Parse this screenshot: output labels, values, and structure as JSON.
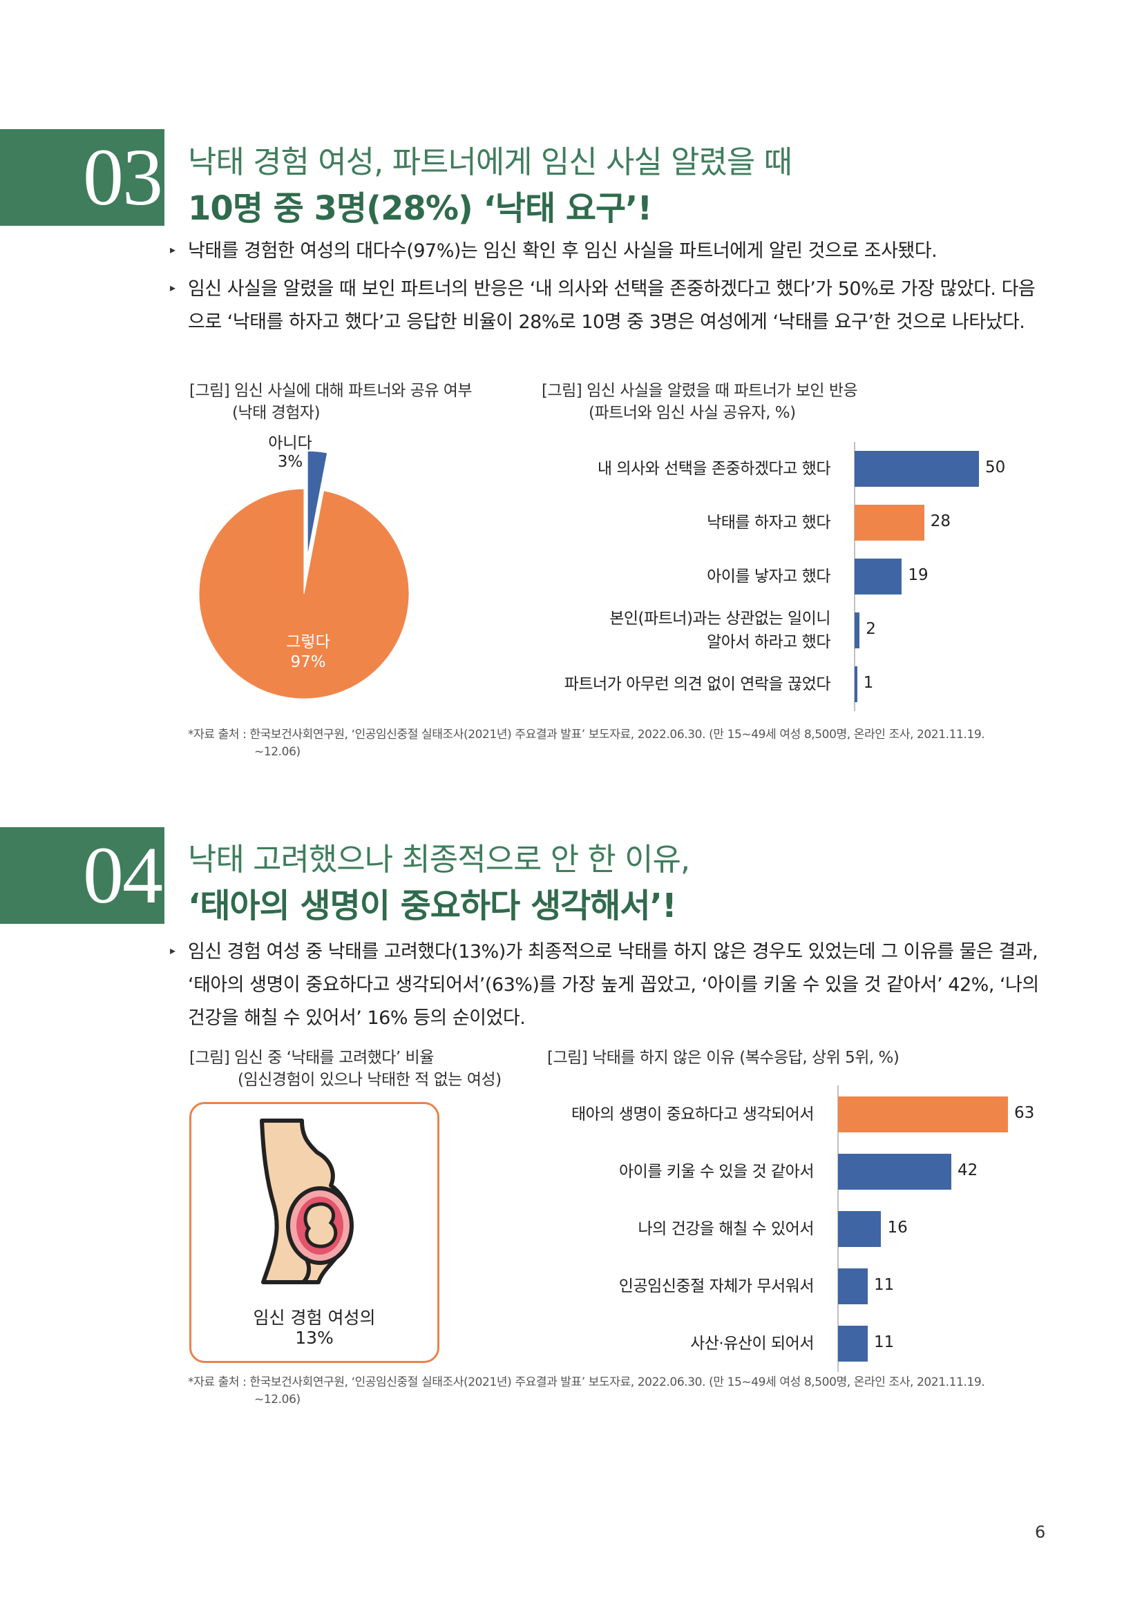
{
  "section03": {
    "number": "03",
    "title_line1": "낙태 경험 여성, 파트너에게 임신 사실 알렸을 때",
    "title_line2": "10명 중 3명(28%) ‘낙태 요구’!",
    "bullet1": "낙태를 경험한 여성의 대다수(97%)는 임신 확인 후 임신 사실을 파트너에게 알린 것으로 조사됐다.",
    "bullet2": "임신 사실을 알렸을 때 보인 파트너의 반응은 ‘내 의사와 선택을 존중하겠다고 했다’가 50%로 가장 많았다. 다음으로 ‘낙태를 하자고 했다’고 응답한 비율이 28%로 10명 중 3명은 여성에게 ‘낙태를 요구’한 것으로 나타났다.",
    "fig1_caption_line1": "[그림] 임신 사실에 대해 파트너와 공유 여부",
    "fig1_caption_line2": "(낙태 경험자)",
    "fig2_caption_line1": "[그림] 임신 사실을 알렸을 때 파트너가 보인 반응",
    "fig2_caption_line2": "(파트너와 임신 사실 공유자, %)",
    "source_line1": "*자료 출처 : 한국보건사회연구원, ‘인공임신중절 실태조사(2021년) 주요결과 발표’ 보도자료, 2022.06.30. (만 15~49세 여성 8,500명, 온라인 조사, 2021.11.19.",
    "source_line2": "~12.06)"
  },
  "section04": {
    "number": "04",
    "title_line1": "낙태 고려했으나 최종적으로 안 한 이유,",
    "title_line2": "‘태아의 생명이 중요하다 생각해서’!",
    "bullet1": "임신 경험 여성 중 낙태를 고려했다(13%)가 최종적으로 낙태를 하지 않은 경우도 있었는데 그 이유를 물은 결과, ‘태아의 생명이 중요하다고 생각되어서’(63%)를 가장 높게 꼽았고, ‘아이를 키울 수 있을 것 같아서’ 42%, ‘나의 건강을 해칠 수 있어서’ 16% 등의 순이었다.",
    "fig1_caption_line1": "[그림] 임신 중 ‘낙태를 고려했다’ 비율",
    "fig1_caption_line2": "(임신경험이 있으나 낙태한 적 없는 여성)",
    "fig2_caption": "[그림] 낙태를 하지 않은 이유 (복수응답, 상위 5위, %)",
    "illus_text_line1": "임신 경험 여성의",
    "illus_text_line2": "13%",
    "source_line1": "*자료 출처 : 한국보건사회연구원, ‘인공임신중절 실태조사(2021년) 주요결과 발표’ 보도자료, 2022.06.30. (만 15~49세 여성 8,500명, 온라인 조사, 2021.11.19.",
    "source_line2": "~12.06)"
  },
  "page_number": "6",
  "chart_data": [
    {
      "type": "pie",
      "slices": [
        {
          "label": "아니다",
          "value": 3,
          "display": "3%",
          "color": "#3f65a5"
        },
        {
          "label": "그렇다",
          "value": 97,
          "display": "97%",
          "color": "#f0854a"
        }
      ]
    },
    {
      "type": "bar",
      "orientation": "horizontal",
      "categories": [
        "내 의사와 선택을 존중하겠다고 했다",
        "낙태를 하자고 했다",
        "아이를 낳자고 했다",
        "본인(파트너)과는 상관없는 일이니 알아서 하라고 했다",
        "파트너가 아무런 의견 없이 연락을 끊었다"
      ],
      "category_lines": [
        [
          "내 의사와 선택을 존중하겠다고 했다"
        ],
        [
          "낙태를 하자고 했다"
        ],
        [
          "아이를 낳자고 했다"
        ],
        [
          "본인(파트너)과는 상관없는 일이니",
          "알아서 하라고 했다"
        ],
        [
          "파트너가 아무런 의견 없이 연락을 끊었다"
        ]
      ],
      "values": [
        50,
        28,
        19,
        2,
        1
      ],
      "colors": [
        "#3f65a5",
        "#f0854a",
        "#3f65a5",
        "#3f65a5",
        "#3f65a5"
      ],
      "xlim": [
        0,
        50
      ]
    },
    {
      "type": "bar",
      "orientation": "horizontal",
      "categories": [
        "태아의 생명이 중요하다고 생각되어서",
        "아이를 키울 수 있을 것 같아서",
        "나의 건강을 해칠 수 있어서",
        "인공임신중절 자체가 무서워서",
        "사산·유산이 되어서"
      ],
      "values": [
        63,
        42,
        16,
        11,
        11
      ],
      "colors": [
        "#f0854a",
        "#3f65a5",
        "#3f65a5",
        "#3f65a5",
        "#3f65a5"
      ],
      "xlim": [
        0,
        63
      ]
    }
  ]
}
